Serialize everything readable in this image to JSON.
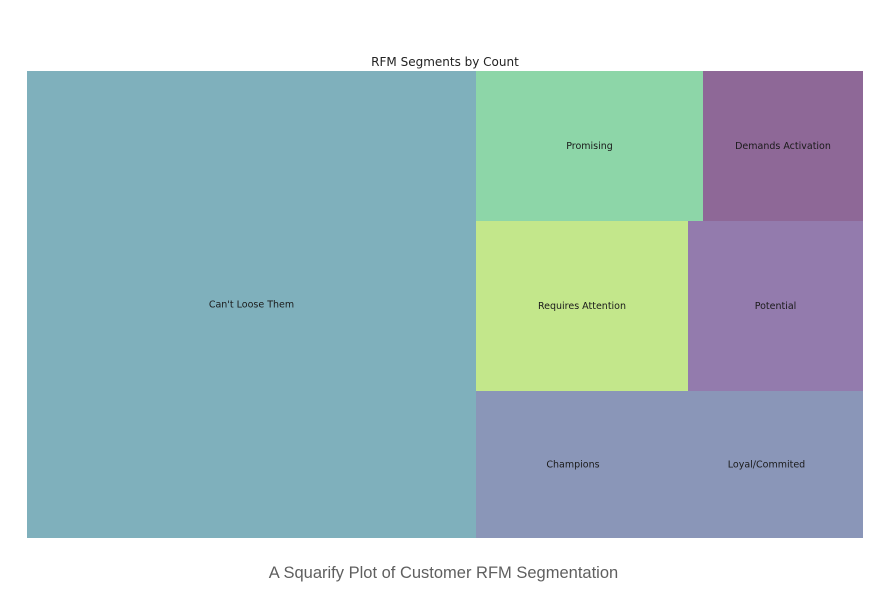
{
  "chart_data": {
    "type": "treemap",
    "title": "RFM Segments by Count",
    "segments": [
      {
        "label": "Can't Loose Them",
        "value": 1118,
        "color": "#7fb0bc"
      },
      {
        "label": "Promising",
        "value": 218,
        "color": "#8dd6a8"
      },
      {
        "label": "Demands Activation",
        "value": 103,
        "color": "#8e6897"
      },
      {
        "label": "Requires Attention",
        "value": 209,
        "color": "#c3e78b"
      },
      {
        "label": "Potential",
        "value": 170,
        "color": "#937bad"
      },
      {
        "label": "Champions",
        "value": 262,
        "color": "#8a96b8"
      },
      {
        "label": "Loyal/Commited",
        "value": 0,
        "color": "#8a96b8"
      }
    ]
  },
  "caption": "A Squarify Plot of Customer RFM Segmentation"
}
